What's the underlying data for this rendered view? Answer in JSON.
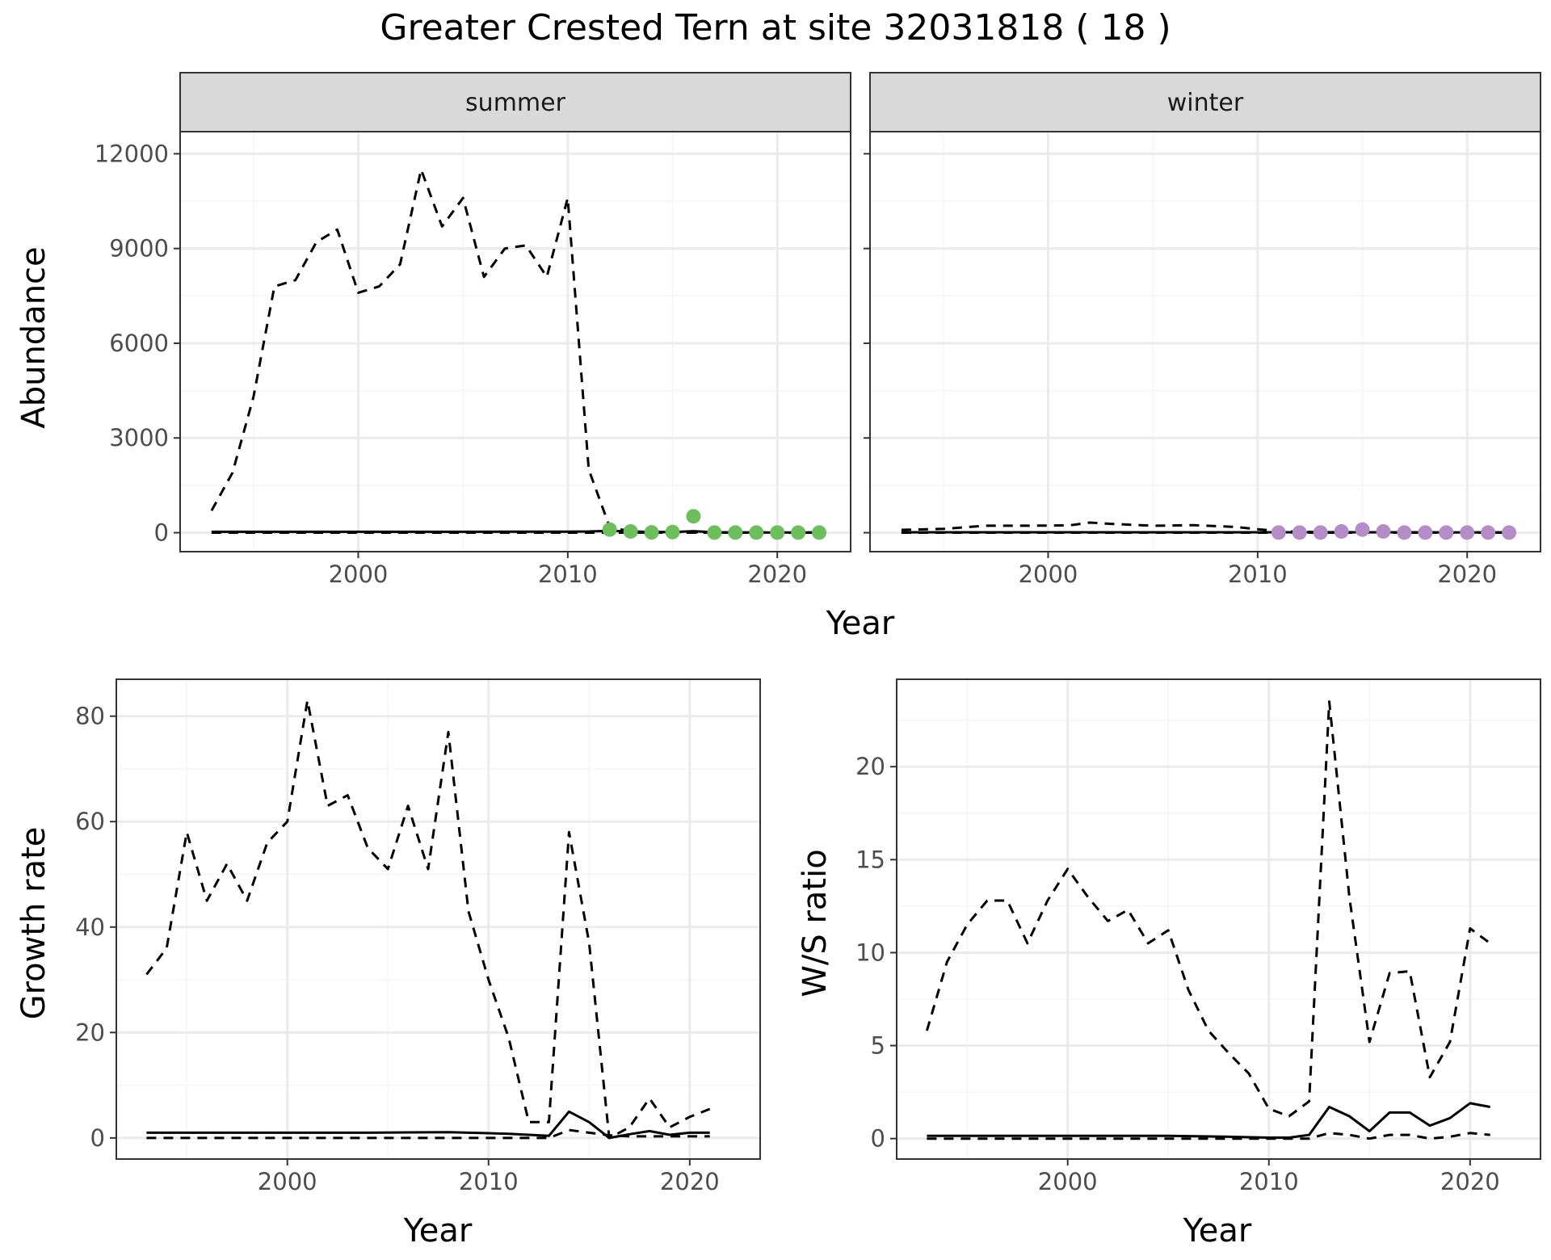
{
  "title": "Greater Crested Tern at site 32031818 ( 18 )",
  "colors": {
    "summer_points": "#6DBE5C",
    "winter_points": "#B48CC8",
    "grid_major": "#EBEBEB",
    "grid_minor": "#F5F5F5",
    "strip_fill": "#D9D9D9"
  },
  "chart_data": [
    {
      "type": "line",
      "panel": "abundance",
      "facet": "summer",
      "xlabel": "Year",
      "ylabel": "Abundance",
      "xlim": [
        1991.5,
        2023.5
      ],
      "ylim": [
        -600,
        12700
      ],
      "xticks": [
        2000,
        2010,
        2020
      ],
      "yticks": [
        0,
        3000,
        6000,
        9000,
        12000
      ],
      "grid": true,
      "series": [
        {
          "style": "dashed",
          "x": [
            1993,
            1994,
            1995,
            1996,
            1997,
            1998,
            1999,
            2000,
            2001,
            2002,
            2003,
            2004,
            2005,
            2006,
            2007,
            2008,
            2009,
            2010,
            2011,
            2012,
            2013,
            2014,
            2015,
            2016,
            2017,
            2018,
            2019,
            2020,
            2021,
            2022
          ],
          "y": [
            700,
            1900,
            4300,
            7800,
            8000,
            9200,
            9600,
            7600,
            7800,
            8500,
            11500,
            9700,
            10600,
            8100,
            9000,
            9100,
            8100,
            10600,
            2000,
            180,
            40,
            25,
            20,
            20,
            15,
            10,
            10,
            10,
            10,
            10
          ]
        },
        {
          "style": "dashed",
          "x": [
            1993,
            2000,
            2010,
            2015,
            2022
          ],
          "y": [
            0,
            0,
            0,
            0,
            0
          ]
        },
        {
          "style": "solid",
          "x": [
            1993,
            1996,
            2000,
            2005,
            2010,
            2011,
            2012,
            2013,
            2014,
            2015,
            2016,
            2017,
            2018,
            2019,
            2020,
            2021,
            2022
          ],
          "y": [
            30,
            30,
            30,
            30,
            35,
            40,
            60,
            40,
            20,
            20,
            50,
            15,
            10,
            10,
            10,
            10,
            10
          ]
        },
        {
          "style": "points",
          "x": [
            2012,
            2013,
            2014,
            2015,
            2016,
            2017,
            2018,
            2019,
            2020,
            2021,
            2022
          ],
          "y": [
            100,
            40,
            10,
            20,
            520,
            5,
            5,
            5,
            5,
            5,
            5
          ]
        }
      ]
    },
    {
      "type": "line",
      "panel": "abundance",
      "facet": "winter",
      "xlabel": "Year",
      "ylabel": "Abundance",
      "xlim": [
        1991.5,
        2023.5
      ],
      "ylim": [
        -600,
        12700
      ],
      "xticks": [
        2000,
        2010,
        2020
      ],
      "yticks": [
        0,
        3000,
        6000,
        9000,
        12000
      ],
      "grid": true,
      "series": [
        {
          "style": "dashed",
          "x": [
            1993,
            1995,
            1997,
            1999,
            2001,
            2002,
            2003,
            2005,
            2007,
            2009,
            2010,
            2011,
            2013,
            2016,
            2022
          ],
          "y": [
            90,
            120,
            220,
            220,
            230,
            320,
            280,
            220,
            240,
            180,
            110,
            50,
            20,
            15,
            10
          ]
        },
        {
          "style": "dashed",
          "x": [
            1993,
            2010,
            2022
          ],
          "y": [
            0,
            0,
            0
          ]
        },
        {
          "style": "solid",
          "x": [
            1993,
            2000,
            2010,
            2015,
            2022
          ],
          "y": [
            15,
            15,
            15,
            15,
            10
          ]
        },
        {
          "style": "points",
          "x": [
            2011,
            2012,
            2013,
            2014,
            2015,
            2016,
            2017,
            2018,
            2019,
            2020,
            2021,
            2022
          ],
          "y": [
            5,
            5,
            5,
            40,
            100,
            40,
            5,
            5,
            5,
            5,
            5,
            5
          ]
        }
      ]
    },
    {
      "type": "line",
      "panel": "growth",
      "xlabel": "Year",
      "ylabel": "Growth rate",
      "xlim": [
        1991.5,
        2023.5
      ],
      "ylim": [
        -4,
        87
      ],
      "xticks": [
        2000,
        2010,
        2020
      ],
      "yticks": [
        0,
        20,
        40,
        60,
        80
      ],
      "grid": true,
      "series": [
        {
          "style": "dashed",
          "x": [
            1993,
            1994,
            1995,
            1996,
            1997,
            1998,
            1999,
            2000,
            2001,
            2002,
            2003,
            2004,
            2005,
            2006,
            2007,
            2008,
            2009,
            2010,
            2011,
            2012,
            2013,
            2014,
            2015,
            2016,
            2017,
            2018,
            2019,
            2020,
            2021
          ],
          "y": [
            31,
            36,
            58,
            45,
            52,
            45,
            56,
            60,
            83,
            63,
            65,
            55,
            51,
            63,
            51,
            77,
            43,
            30,
            19,
            3,
            3,
            58,
            37,
            0,
            2,
            7.5,
            2,
            4,
            5.5
          ]
        },
        {
          "style": "dashed",
          "x": [
            1993,
            2000,
            2010,
            2012,
            2013,
            2014,
            2015,
            2016,
            2017,
            2018,
            2019,
            2020,
            2021
          ],
          "y": [
            0,
            0,
            0,
            0,
            0,
            1.5,
            1,
            0.5,
            0.3,
            0.3,
            0.3,
            0.3,
            0.3
          ]
        },
        {
          "style": "solid",
          "x": [
            1993,
            1996,
            2000,
            2004,
            2008,
            2010,
            2011,
            2012,
            2013,
            2014,
            2015,
            2016,
            2017,
            2018,
            2019,
            2020,
            2021
          ],
          "y": [
            1,
            1,
            1,
            1,
            1.1,
            0.9,
            0.8,
            0.6,
            0.4,
            5,
            3,
            0,
            0.7,
            1.3,
            0.6,
            1,
            1
          ]
        }
      ]
    },
    {
      "type": "line",
      "panel": "ratio",
      "xlabel": "Year",
      "ylabel": "W/S ratio",
      "xlim": [
        1991.5,
        2023.5
      ],
      "ylim": [
        -1.1,
        24.7
      ],
      "xticks": [
        2000,
        2010,
        2020
      ],
      "yticks": [
        0,
        5,
        10,
        15,
        20
      ],
      "grid": true,
      "series": [
        {
          "style": "dashed",
          "x": [
            1993,
            1994,
            1995,
            1996,
            1997,
            1998,
            1999,
            2000,
            2001,
            2002,
            2003,
            2004,
            2005,
            2006,
            2007,
            2008,
            2009,
            2010,
            2011,
            2012,
            2013,
            2014,
            2015,
            2016,
            2017,
            2018,
            2019,
            2020,
            2021
          ],
          "y": [
            5.8,
            9.5,
            11.5,
            12.8,
            12.8,
            10.5,
            12.8,
            14.5,
            13,
            11.7,
            12.3,
            10.5,
            11.2,
            8,
            5.8,
            4.6,
            3.5,
            1.6,
            1.2,
            2,
            23.5,
            13,
            5.2,
            8.9,
            9,
            3.3,
            5.2,
            11.3,
            10.5
          ]
        },
        {
          "style": "dashed",
          "x": [
            1993,
            2000,
            2010,
            2012,
            2013,
            2014,
            2015,
            2016,
            2017,
            2018,
            2019,
            2020,
            2021
          ],
          "y": [
            0,
            0,
            0,
            0,
            0.3,
            0.2,
            0,
            0.2,
            0.2,
            0,
            0.1,
            0.3,
            0.2
          ]
        },
        {
          "style": "solid",
          "x": [
            1993,
            1996,
            2000,
            2005,
            2008,
            2010,
            2011,
            2012,
            2013,
            2014,
            2015,
            2016,
            2017,
            2018,
            2019,
            2020,
            2021
          ],
          "y": [
            0.15,
            0.15,
            0.15,
            0.15,
            0.1,
            0.05,
            0.05,
            0.2,
            1.7,
            1.2,
            0.4,
            1.4,
            1.4,
            0.7,
            1.1,
            1.9,
            1.7
          ]
        }
      ]
    }
  ],
  "facets": [
    "summer",
    "winter"
  ],
  "labels": {
    "abundance_y": "Abundance",
    "abundance_x": "Year",
    "growth_y": "Growth rate",
    "growth_x": "Year",
    "ratio_y": "W/S ratio",
    "ratio_x": "Year"
  }
}
